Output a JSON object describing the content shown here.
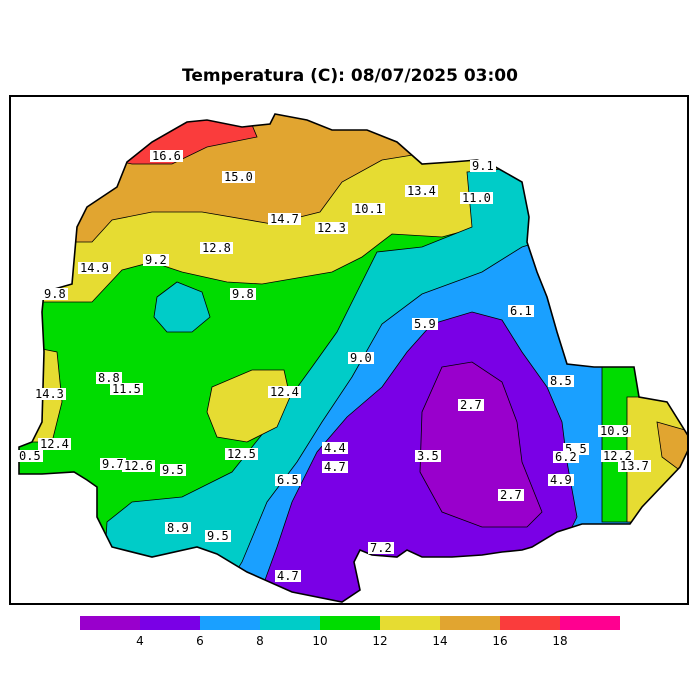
{
  "title": "Temperatura (C): 08/07/2025 03:00",
  "colors": {
    "levels": [
      "#9900cc",
      "#7a00e6",
      "#1aa0ff",
      "#00ccc8",
      "#00dc00",
      "#e6dc32",
      "#e1a530",
      "#fa3c3c",
      "#ff0090"
    ],
    "outline": "#000000"
  },
  "colorbar": {
    "colors": [
      "#9900cc",
      "#7a00e6",
      "#1aa0ff",
      "#00ccc8",
      "#00dc00",
      "#e6dc32",
      "#e1a530",
      "#fa3c3c",
      "#ff0090"
    ],
    "tick_labels": [
      "4",
      "6",
      "8",
      "10",
      "12",
      "14",
      "16",
      "18"
    ]
  },
  "labels": [
    "16.6",
    "15.0",
    "14.7",
    "12.3",
    "10.1",
    "13.4",
    "9.1",
    "11.0",
    "14.9",
    "9.2",
    "12.8",
    "9.8",
    "9.8",
    "5.9",
    "6.1",
    "14.3",
    "8.8",
    "11.5",
    "9.0",
    "8.5",
    "12.4",
    "2.7",
    "10.9",
    "12.4",
    "0.5",
    "9.7",
    "12.6",
    "9.5",
    "12.5",
    "4.4",
    "4.7",
    "3.5",
    "5.5",
    "6.2",
    "12.2",
    "13.7",
    "6.5",
    "4.9",
    "2.7",
    "8.9",
    "9.5",
    "7.2",
    "4.7"
  ]
}
